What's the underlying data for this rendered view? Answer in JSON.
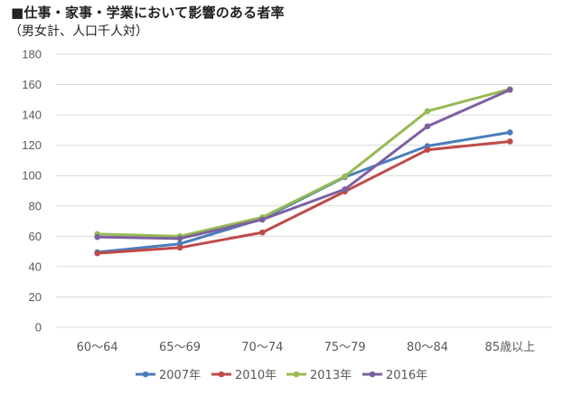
{
  "header": {
    "title": "■仕事・家事・学業において影響のある者率",
    "subtitle": "（男女計、人口千人対）"
  },
  "chart_data": {
    "type": "line",
    "categories": [
      "60〜64",
      "65〜69",
      "70〜74",
      "75〜79",
      "80〜84",
      "85歳以上"
    ],
    "ylim": [
      0,
      180
    ],
    "yticks": [
      0,
      20,
      40,
      60,
      80,
      100,
      120,
      140,
      160,
      180
    ],
    "grid": true,
    "legend_position": "bottom",
    "series": [
      {
        "name": "2007年",
        "color": "#4A7EBB",
        "values": [
          49.5,
          55.0,
          71.5,
          99.0,
          119.5,
          128.5
        ]
      },
      {
        "name": "2010年",
        "color": "#BE4B48",
        "values": [
          48.8,
          52.5,
          62.5,
          89.5,
          117.0,
          122.5
        ]
      },
      {
        "name": "2013年",
        "color": "#98B954",
        "values": [
          61.5,
          60.0,
          72.5,
          99.5,
          142.5,
          157.0
        ]
      },
      {
        "name": "2016年",
        "color": "#7D60A0",
        "values": [
          59.5,
          58.5,
          71.0,
          91.0,
          132.5,
          156.5
        ]
      }
    ]
  }
}
